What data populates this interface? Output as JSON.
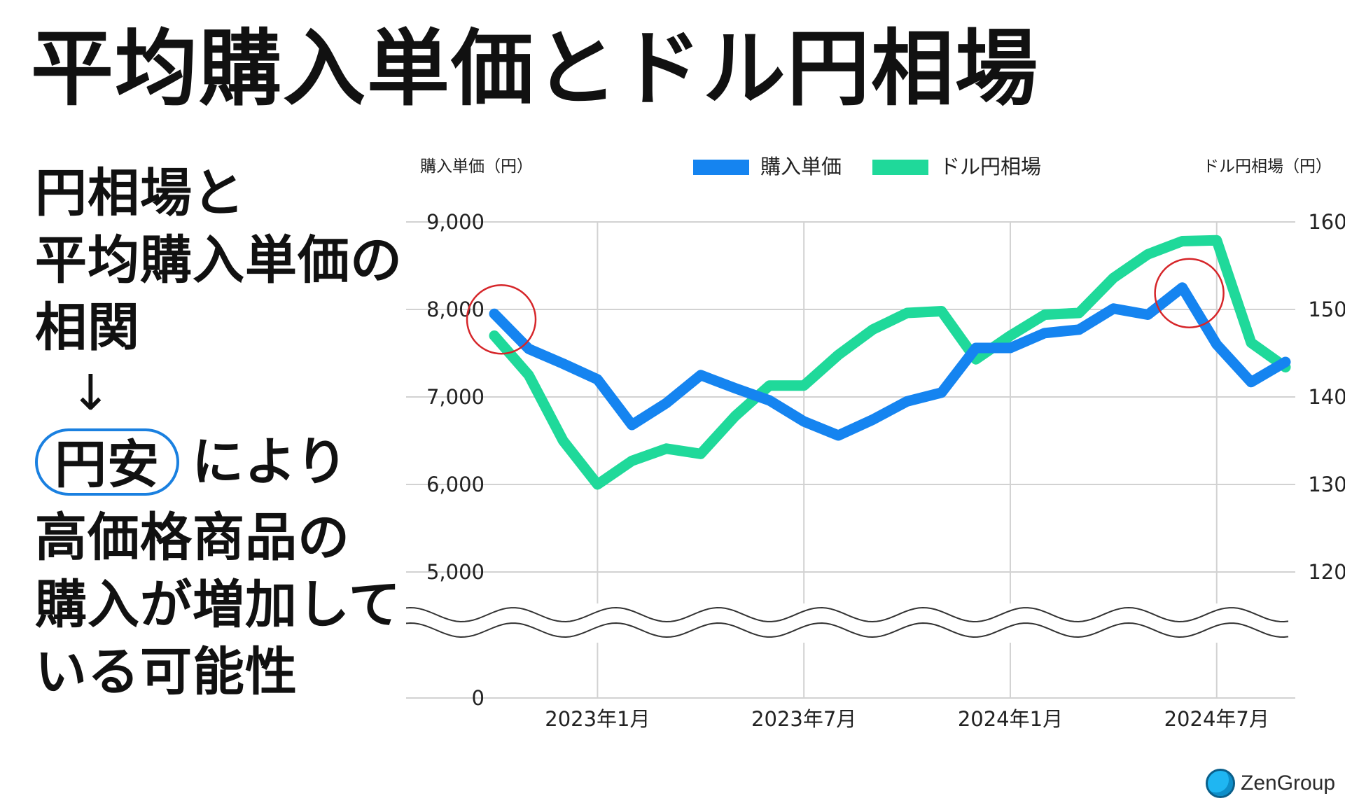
{
  "title": "平均購入単価とドル円相場",
  "left": {
    "lines1": [
      "円相場と",
      "平均購入単価の",
      "相関"
    ],
    "arrow": "↓",
    "pill": "円安",
    "pill_after": "により",
    "lines2": [
      "高価格商品の",
      "購入が増加して",
      "いる可能性"
    ]
  },
  "colors": {
    "price": "#1584f0",
    "fx": "#1fd99a",
    "highlight": "#d6262a",
    "pill": "#1a80e0",
    "grid": "#d2d2d2"
  },
  "chart_data": {
    "type": "line",
    "left_axis_label": "購入単価（円）",
    "right_axis_label": "ドル円相場（円）",
    "legend": [
      "購入単価",
      "ドル円相場"
    ],
    "legend_position": "top-center",
    "grid": true,
    "left_ticks": [
      "9,000",
      "8,000",
      "7,000",
      "6,000",
      "5,000",
      "0"
    ],
    "right_ticks": [
      "160",
      "150",
      "140",
      "130",
      "120"
    ],
    "x_tick_labels": [
      "2023年1月",
      "2023年7月",
      "2024年1月",
      "2024年7月"
    ],
    "ylim_left": [
      5000,
      9000
    ],
    "ylim_right": [
      120,
      160
    ],
    "axis_break": "between 0 and 5,000",
    "x": [
      "2022-10",
      "2022-11",
      "2022-12",
      "2023-01",
      "2023-02",
      "2023-03",
      "2023-04",
      "2023-05",
      "2023-06",
      "2023-07",
      "2023-08",
      "2023-09",
      "2023-10",
      "2023-11",
      "2023-12",
      "2024-01",
      "2024-02",
      "2024-03",
      "2024-04",
      "2024-05",
      "2024-06",
      "2024-07",
      "2024-08",
      "2024-09"
    ],
    "series": [
      {
        "name": "購入単価",
        "axis": "left",
        "values": [
          7950,
          7550,
          7380,
          7200,
          6680,
          6930,
          7250,
          7100,
          6960,
          6720,
          6560,
          6740,
          6950,
          7050,
          7560,
          7560,
          7730,
          7770,
          8010,
          7940,
          8250,
          7600,
          7170,
          7400
        ]
      },
      {
        "name": "ドル円相場",
        "axis": "right",
        "values": [
          147,
          142.5,
          135,
          130,
          132.7,
          134.1,
          133.5,
          137.8,
          141.3,
          141.3,
          144.8,
          147.7,
          149.6,
          149.8,
          144.3,
          147,
          149.4,
          149.6,
          153.6,
          156.3,
          157.8,
          157.9,
          146.2,
          143.4
        ]
      }
    ],
    "highlights": [
      {
        "series": "購入単価",
        "x": "2022-10"
      },
      {
        "series": "購入単価",
        "x": "2024-06"
      }
    ]
  },
  "logo": {
    "name": "ZenGroup"
  }
}
